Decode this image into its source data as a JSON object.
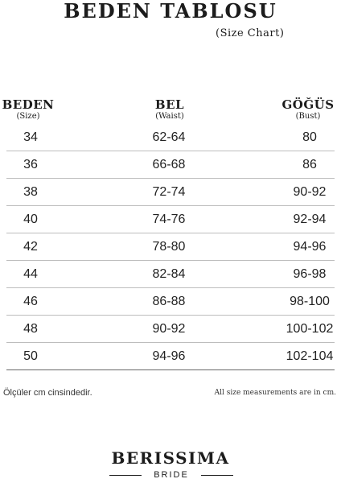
{
  "title": "BEDEN TABLOSU",
  "subtitle": "(Size Chart)",
  "columns": [
    {
      "label": "BEDEN",
      "sublabel": "(Size)"
    },
    {
      "label": "BEL",
      "sublabel": "(Waist)"
    },
    {
      "label": "GÖĞÜS",
      "sublabel": "(Bust)"
    }
  ],
  "rows": [
    [
      "34",
      "62-64",
      "80"
    ],
    [
      "36",
      "66-68",
      "86"
    ],
    [
      "38",
      "72-74",
      "90-92"
    ],
    [
      "40",
      "74-76",
      "92-94"
    ],
    [
      "42",
      "78-80",
      "94-96"
    ],
    [
      "44",
      "82-84",
      "96-98"
    ],
    [
      "46",
      "86-88",
      "98-100"
    ],
    [
      "48",
      "90-92",
      "100-102"
    ],
    [
      "50",
      "94-96",
      "102-104"
    ]
  ],
  "note_left": "Ölçüler cm cinsindedir.",
  "note_right": "All size measurements are in cm.",
  "brand": {
    "name": "BERISSIMA",
    "tagline": "BRIDE"
  }
}
